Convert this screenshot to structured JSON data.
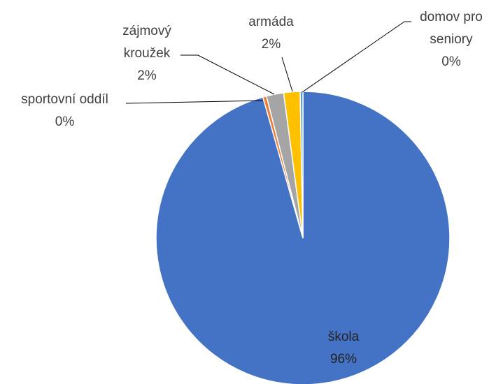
{
  "chart_data": {
    "type": "pie",
    "categories": [
      "škola",
      "sportovní oddíl",
      "zájmový kroužek",
      "armáda",
      "domov pro seniory"
    ],
    "values": [
      95.6,
      0.4,
      1.9,
      1.8,
      0.3
    ],
    "value_labels": [
      "96%",
      "0%",
      "2%",
      "2%",
      "0%"
    ],
    "colors": [
      "#4472c4",
      "#ed7d31",
      "#a5a5a5",
      "#ffc000",
      "#5b9bd5"
    ]
  }
}
